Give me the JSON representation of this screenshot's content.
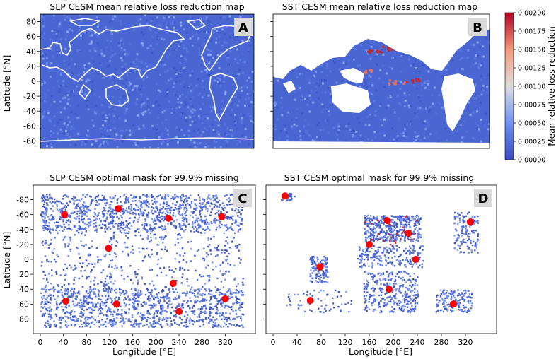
{
  "figure": {
    "panels": [
      {
        "letter": "A",
        "title": "SLP CESM mean relative loss reduction map",
        "kind": "map"
      },
      {
        "letter": "B",
        "title": "SST CESM mean relative loss reduction map",
        "kind": "map"
      },
      {
        "letter": "C",
        "title": "SLP CESM optimal mask for 99.9% missing",
        "kind": "mask"
      },
      {
        "letter": "D",
        "title": "SST CESM optimal mask for 99.9% missing",
        "kind": "mask"
      }
    ],
    "colorbar": {
      "label": "Mean relative loss reduction",
      "ticks": [
        "0.00000",
        "0.00025",
        "0.00050",
        "0.00075",
        "0.00100",
        "0.00125",
        "0.00150",
        "0.00175",
        "0.00200"
      ],
      "colors": {
        "low": "#3b4cc0",
        "mid": "#dddddd",
        "high": "#b40426"
      }
    },
    "colors": {
      "land_outline": "#ffffff",
      "land_fill": "#ffffff",
      "marker": "#ff0000",
      "ocean": "#4a66d3"
    }
  },
  "chart_data": [
    {
      "type": "heatmap",
      "title": "SLP CESM mean relative loss reduction map",
      "ylabel": "Latitude [°N]",
      "xlabel": "",
      "ylim": [
        -90,
        90
      ],
      "yticks": [
        80,
        60,
        40,
        20,
        0,
        -20,
        -40,
        -60,
        -80
      ],
      "value_range": [
        0,
        0.002
      ],
      "typical_value": 0.0002,
      "notes": "Mostly low values everywhere; coastline outlines in white"
    },
    {
      "type": "heatmap",
      "title": "SST CESM mean relative loss reduction map",
      "ylabel": "",
      "xlabel": "",
      "ylim": [
        -90,
        90
      ],
      "value_range": [
        0,
        0.002
      ],
      "typical_value": 0.0002,
      "hotspots": [
        {
          "lon": 165,
          "lat": 40,
          "value": 0.0019
        },
        {
          "lon": 195,
          "lat": 45,
          "value": 0.0018
        },
        {
          "lon": 230,
          "lat": 2,
          "value": 0.0019
        },
        {
          "lon": 150,
          "lat": 15,
          "value": 0.0015
        },
        {
          "lon": 205,
          "lat": 0,
          "value": 0.0014
        }
      ],
      "notes": "Land masked in white"
    },
    {
      "type": "scatter",
      "title": "SLP CESM optimal mask for 99.9% missing",
      "xlabel": "Longitude [°E]",
      "ylabel": "Latitude [°N]",
      "xlim": [
        0,
        360
      ],
      "xticks": [
        0,
        40,
        80,
        120,
        160,
        200,
        240,
        280,
        320
      ],
      "ylim": [
        -90,
        90
      ],
      "yticks": [
        -80,
        -60,
        -40,
        -20,
        0,
        20,
        40,
        60,
        80
      ],
      "y_axis_inverted": true,
      "series": [
        {
          "points": [
            [
              42,
              -60
            ],
            [
              135,
              -68
            ],
            [
              222,
              -55
            ],
            [
              314,
              -57
            ],
            [
              118,
              -15
            ],
            [
              230,
              32
            ],
            [
              44,
              56
            ],
            [
              132,
              60
            ],
            [
              240,
              70
            ],
            [
              320,
              53
            ]
          ]
        }
      ]
    },
    {
      "type": "scatter",
      "title": "SST CESM optimal mask for 99.9% missing",
      "xlabel": "Longitude [°E]",
      "ylabel": "",
      "xlim": [
        0,
        360
      ],
      "xticks": [
        0,
        40,
        80,
        120,
        160,
        200,
        240,
        280,
        320
      ],
      "ylim": [
        -90,
        90
      ],
      "y_axis_inverted": true,
      "series": [
        {
          "points": [
            [
              20,
              -85
            ],
            [
              190,
              -52
            ],
            [
              225,
              -35
            ],
            [
              160,
              -20
            ],
            [
              328,
              -50
            ],
            [
              78,
              10
            ],
            [
              237,
              0
            ],
            [
              193,
              40
            ],
            [
              62,
              55
            ],
            [
              300,
              60
            ]
          ]
        }
      ]
    }
  ]
}
